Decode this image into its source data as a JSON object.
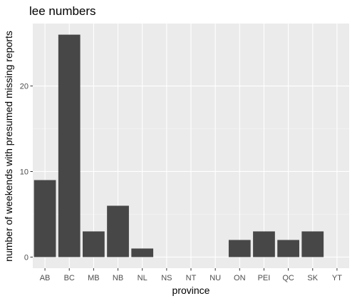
{
  "chart_data": {
    "type": "bar",
    "title": "lee numbers",
    "xlabel": "province",
    "ylabel": "number of weekends with presumed missing reports",
    "categories": [
      "AB",
      "BC",
      "MB",
      "NB",
      "NL",
      "NS",
      "NT",
      "NU",
      "ON",
      "PEI",
      "QC",
      "SK",
      "YT"
    ],
    "values": [
      9,
      26,
      3,
      6,
      1,
      0,
      0,
      0,
      2,
      3,
      2,
      3,
      0
    ],
    "yticks": [
      0,
      10,
      20
    ],
    "ylim": [
      -1.3,
      27.3
    ],
    "grid": true,
    "legend": "none",
    "colors": {
      "panel": "#ebebeb",
      "grid_major": "#ffffff",
      "grid_minor": "#f5f5f5",
      "bar": "#474747",
      "tick": "#333333"
    }
  }
}
